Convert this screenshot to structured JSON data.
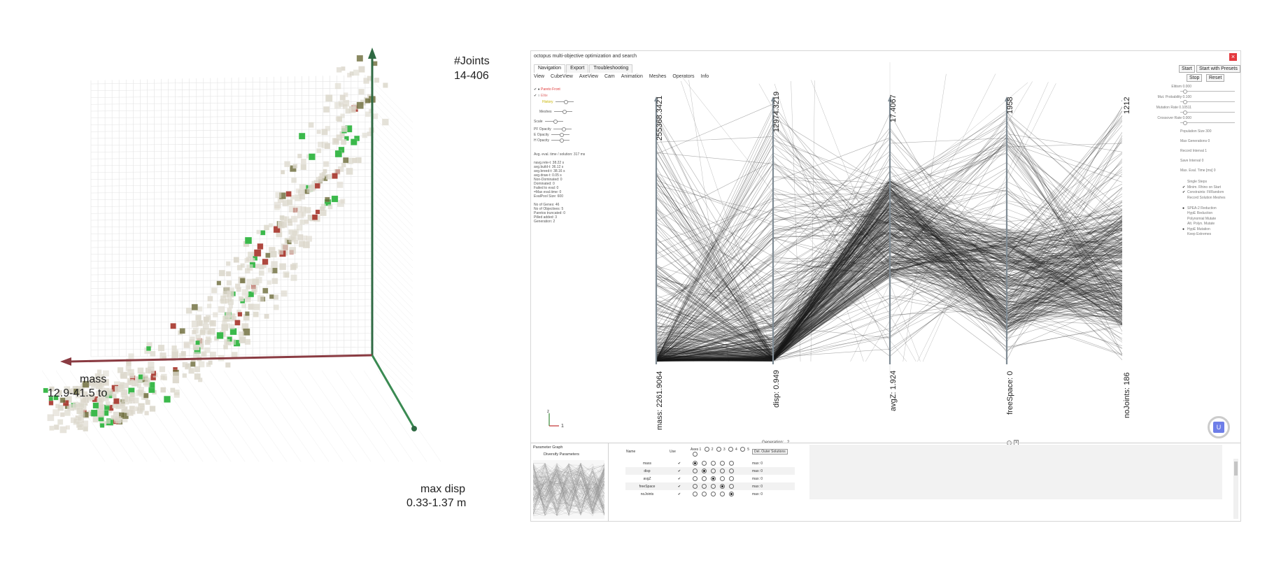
{
  "plot3d": {
    "axis_joints": {
      "name": "#Joints",
      "range": "14-406"
    },
    "axis_mass": {
      "name": "mass",
      "range": "12.9-41.5 to"
    },
    "axis_disp": {
      "name": "max disp",
      "range": "0.33-1.37 m"
    },
    "colors": {
      "pareto": "#3bb94b",
      "elite": "#a6342a",
      "history": "#dcd8cc",
      "joints_axis": "#2f6a43",
      "mass_axis": "#8a3b42",
      "disp_axis": "#3a8a52"
    }
  },
  "app": {
    "title": "octopus multi-objective optimization and search",
    "close_label": "×",
    "tabs": [
      "Navigation",
      "Export",
      "Troubleshooting"
    ],
    "menu": [
      "View",
      "CubeView",
      "AxeView",
      "Cam",
      "Animation",
      "Meshes",
      "Operators",
      "Info"
    ],
    "left_panel": {
      "legend": [
        {
          "label": "Pareto Front",
          "color": "#e03a3a"
        },
        {
          "label": "Elite",
          "color": "#e07070"
        },
        {
          "label": "History",
          "color": "#c7b400"
        }
      ],
      "meshes_label": "Meshes",
      "scale_label": "Scale",
      "pf_opacity": "PF Opacity",
      "e_opacity": "E Opacity",
      "h_opacity": "H Opacity",
      "stats": [
        "Avg. eval. time / solution: 317 ms",
        "",
        "navg.rete-t: 38.22 s",
        "avg.build-t: 36.12 s",
        "avg.breed-t: 38.16 s",
        "avg.draw-t: 0.05 s",
        "Non-Dominated: 0",
        "Dominated: 0",
        "Failed to eval: 0",
        "=Max eval.time: 0",
        "EvalPool Size: 600",
        "",
        "No of Genes: 46",
        "No of Objectives: 5",
        "Paretos truncated: 0",
        "Pilled added: 3",
        "Generation: 2"
      ]
    },
    "buttons": {
      "start": "Start",
      "start_presets": "Start with Presets",
      "stop": "Stop",
      "reset": "Reset"
    },
    "right_panel": {
      "params": [
        "Elitism 0.000",
        "Mut. Probability 0.100",
        "Mutation Rate 0.10511",
        "Crossover Rate 0.000"
      ],
      "fields": [
        "Population Size  300",
        "Max Generations  0",
        "Record Interval  1",
        "Save Interval  0",
        "Max. Eval. Time [ms]  0"
      ],
      "options": [
        "Single Steps",
        "Minim. Rhino on Start",
        "Constraints: FilRandom",
        "Record Solution Meshes",
        "",
        "SPEA-2 Reduction",
        "HypE Reduction",
        "Polynomial Mutate",
        "Alt. Polyn. Mutate",
        "HypE Mutation",
        "Keep Extremes"
      ]
    },
    "pcp": {
      "axes": [
        {
          "min": "mass: 2261.9064",
          "max": "255368.3421"
        },
        {
          "min": "disp: 0.949",
          "max": "12974.3219"
        },
        {
          "min": "avgZ: 1.924",
          "max": "17.4067"
        },
        {
          "min": "freeSpace: 0",
          "max": "1958"
        },
        {
          "min": "noJoints: 186",
          "max": "1212"
        }
      ]
    },
    "generation_label": "Generation:",
    "generation_value": "2",
    "gen_close": "X",
    "coord_z": "z",
    "coord_x": "1",
    "uicon_label": "U",
    "bottom": {
      "param_graph": "Parameter Graph",
      "diversify": "Diversify Parameters",
      "del_button": "Del. Outer Solutions",
      "headers": [
        "Name",
        "Use",
        "Axes 1",
        "2",
        "3",
        "4",
        "5"
      ],
      "rows": [
        {
          "name": "mass",
          "check": "✔",
          "max": "max: 0",
          "on": 0
        },
        {
          "name": "disp",
          "check": "✔",
          "max": "max: 0",
          "on": 1
        },
        {
          "name": "avgZ",
          "check": "✔",
          "max": "max: 0",
          "on": 2
        },
        {
          "name": "freeSpace",
          "check": "✔",
          "max": "max: 0",
          "on": 3
        },
        {
          "name": "noJoints",
          "check": "✔",
          "max": "max: 0",
          "on": 4
        }
      ]
    }
  }
}
